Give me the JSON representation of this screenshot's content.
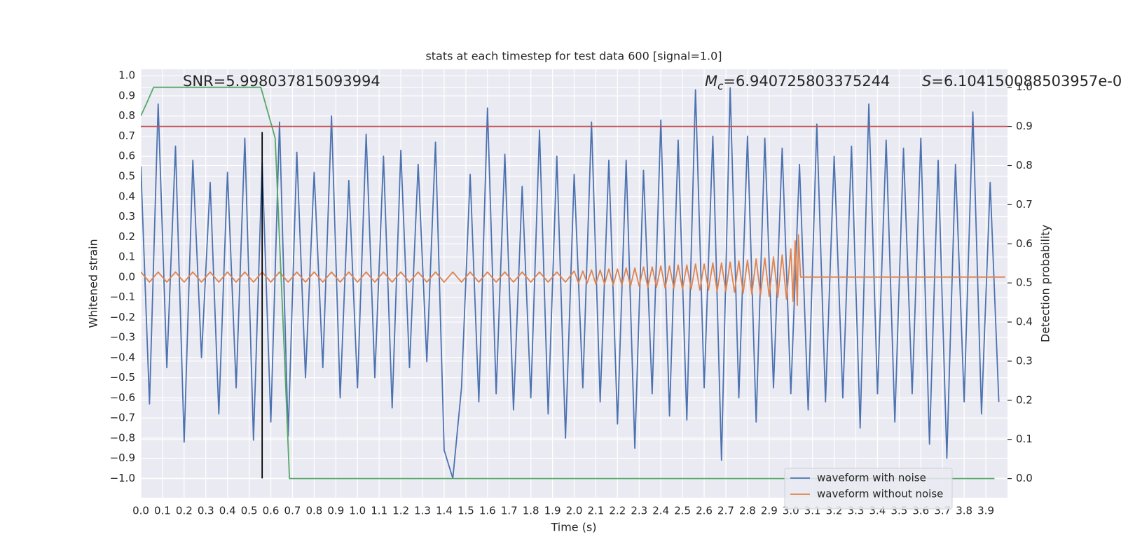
{
  "chart_data": {
    "type": "line",
    "title": "stats at each timestep for test data 600 [signal=1.0]",
    "x_label": "Time (s)",
    "y_label": "Whitened strain",
    "y2_label": "Detection probability",
    "xlim": [
      0,
      4.0
    ],
    "ylim": [
      -1.096,
      1.032
    ],
    "y2lim": [
      -0.049,
      1.046
    ],
    "grid": true,
    "xticks": [
      {
        "value": 0,
        "label": "0.0"
      },
      {
        "value": 0.1,
        "label": "0.1"
      },
      {
        "value": 0.2,
        "label": "0.2"
      },
      {
        "value": 0.3,
        "label": "0.3"
      },
      {
        "value": 0.4,
        "label": "0.4"
      },
      {
        "value": 0.5,
        "label": "0.5"
      },
      {
        "value": 0.6,
        "label": "0.6"
      },
      {
        "value": 0.7,
        "label": "0.7"
      },
      {
        "value": 0.8,
        "label": "0.8"
      },
      {
        "value": 0.9,
        "label": "0.9"
      },
      {
        "value": 1,
        "label": "1.0"
      },
      {
        "value": 1.1,
        "label": "1.1"
      },
      {
        "value": 1.2,
        "label": "1.2"
      },
      {
        "value": 1.3,
        "label": "1.3"
      },
      {
        "value": 1.4,
        "label": "1.4"
      },
      {
        "value": 1.5,
        "label": "1.5"
      },
      {
        "value": 1.6,
        "label": "1.6"
      },
      {
        "value": 1.7,
        "label": "1.7"
      },
      {
        "value": 1.8,
        "label": "1.8"
      },
      {
        "value": 1.9,
        "label": "1.9"
      },
      {
        "value": 2,
        "label": "2.0"
      },
      {
        "value": 2.1,
        "label": "2.1"
      },
      {
        "value": 2.2,
        "label": "2.2"
      },
      {
        "value": 2.3,
        "label": "2.3"
      },
      {
        "value": 2.4,
        "label": "2.4"
      },
      {
        "value": 2.5,
        "label": "2.5"
      },
      {
        "value": 2.6,
        "label": "2.6"
      },
      {
        "value": 2.7,
        "label": "2.7"
      },
      {
        "value": 2.8,
        "label": "2.8"
      },
      {
        "value": 2.9,
        "label": "2.9"
      },
      {
        "value": 3,
        "label": "3.0"
      },
      {
        "value": 3.1,
        "label": "3.1"
      },
      {
        "value": 3.2,
        "label": "3.2"
      },
      {
        "value": 3.3,
        "label": "3.3"
      },
      {
        "value": 3.4,
        "label": "3.4"
      },
      {
        "value": 3.5,
        "label": "3.5"
      },
      {
        "value": 3.6,
        "label": "3.6"
      },
      {
        "value": 3.7,
        "label": "3.7"
      },
      {
        "value": 3.8,
        "label": "3.8"
      },
      {
        "value": 3.9,
        "label": "3.9"
      }
    ],
    "yticks": [
      {
        "value": -1,
        "label": "−1.0"
      },
      {
        "value": -0.9,
        "label": "−0.9"
      },
      {
        "value": -0.8,
        "label": "−0.8"
      },
      {
        "value": -0.7,
        "label": "−0.7"
      },
      {
        "value": -0.6,
        "label": "−0.6"
      },
      {
        "value": -0.5,
        "label": "−0.5"
      },
      {
        "value": -0.4,
        "label": "−0.4"
      },
      {
        "value": -0.3,
        "label": "−0.3"
      },
      {
        "value": -0.2,
        "label": "−0.2"
      },
      {
        "value": -0.1,
        "label": "−0.1"
      },
      {
        "value": 0,
        "label": "0.0"
      },
      {
        "value": 0.1,
        "label": "0.1"
      },
      {
        "value": 0.2,
        "label": "0.2"
      },
      {
        "value": 0.3,
        "label": "0.3"
      },
      {
        "value": 0.4,
        "label": "0.4"
      },
      {
        "value": 0.5,
        "label": "0.5"
      },
      {
        "value": 0.6,
        "label": "0.6"
      },
      {
        "value": 0.7,
        "label": "0.7"
      },
      {
        "value": 0.8,
        "label": "0.8"
      },
      {
        "value": 0.9,
        "label": "0.9"
      },
      {
        "value": 1,
        "label": "1.0"
      }
    ],
    "y2ticks": [
      {
        "value": 0,
        "label": "0.0"
      },
      {
        "value": 0.1,
        "label": "0.1"
      },
      {
        "value": 0.2,
        "label": "0.2"
      },
      {
        "value": 0.3,
        "label": "0.3"
      },
      {
        "value": 0.4,
        "label": "0.4"
      },
      {
        "value": 0.5,
        "label": "0.5"
      },
      {
        "value": 0.6,
        "label": "0.6"
      },
      {
        "value": 0.7,
        "label": "0.7"
      },
      {
        "value": 0.8,
        "label": "0.8"
      },
      {
        "value": 0.9,
        "label": "0.9"
      },
      {
        "value": 1,
        "label": "1.0"
      }
    ],
    "legend": "lower right",
    "series": [
      {
        "name": "waveform with noise",
        "color": "#4c72b0",
        "x": [
          0,
          0.04,
          0.08,
          0.12,
          0.16,
          0.2,
          0.24,
          0.28,
          0.32,
          0.36,
          0.4,
          0.44,
          0.48,
          0.52,
          0.56,
          0.6,
          0.64,
          0.68,
          0.72,
          0.76,
          0.8,
          0.84,
          0.88,
          0.92,
          0.96,
          1,
          1.04,
          1.08,
          1.12,
          1.16,
          1.2,
          1.24,
          1.28,
          1.32,
          1.36,
          1.4,
          1.44,
          1.48,
          1.52,
          1.56,
          1.6,
          1.64,
          1.68,
          1.72,
          1.76,
          1.8,
          1.84,
          1.88,
          1.92,
          1.96,
          2,
          2.04,
          2.08,
          2.12,
          2.16,
          2.2,
          2.24,
          2.28,
          2.32,
          2.36,
          2.4,
          2.44,
          2.48,
          2.52,
          2.56,
          2.6,
          2.64,
          2.68,
          2.72,
          2.76,
          2.8,
          2.84,
          2.88,
          2.92,
          2.96,
          3,
          3.04,
          3.08,
          3.12,
          3.16,
          3.2,
          3.24,
          3.28,
          3.32,
          3.36,
          3.4,
          3.44,
          3.48,
          3.52,
          3.56,
          3.6,
          3.64,
          3.68,
          3.72,
          3.76,
          3.8,
          3.84,
          3.88,
          3.92,
          3.96
        ],
        "values": [
          0.55,
          -0.63,
          0.86,
          -0.45,
          0.65,
          -0.82,
          0.58,
          -0.4,
          0.47,
          -0.68,
          0.52,
          -0.55,
          0.69,
          -0.81,
          0.57,
          -0.72,
          0.77,
          -0.79,
          0.62,
          -0.5,
          0.52,
          -0.45,
          0.8,
          -0.6,
          0.48,
          -0.55,
          0.71,
          -0.5,
          0.6,
          -0.65,
          0.63,
          -0.45,
          0.56,
          -0.42,
          0.67,
          -0.86,
          -1.0,
          -0.55,
          0.51,
          -0.62,
          0.84,
          -0.58,
          0.61,
          -0.66,
          0.45,
          -0.6,
          0.73,
          -0.68,
          0.6,
          -0.8,
          0.51,
          -0.55,
          0.77,
          -0.62,
          0.58,
          -0.73,
          0.58,
          -0.85,
          0.53,
          -0.58,
          0.78,
          -0.69,
          0.68,
          -0.71,
          0.93,
          -0.55,
          0.7,
          -0.91,
          0.94,
          -0.6,
          0.7,
          -0.72,
          0.69,
          -0.55,
          0.64,
          -0.58,
          0.56,
          -0.66,
          0.76,
          -0.62,
          0.6,
          -0.6,
          0.65,
          -0.75,
          0.86,
          -0.58,
          0.68,
          -0.72,
          0.64,
          -0.58,
          0.69,
          -0.83,
          0.58,
          -0.9,
          0.56,
          -0.62,
          0.82,
          -0.68,
          0.47,
          -0.62
        ]
      },
      {
        "name": "waveform without noise",
        "color": "#dd8452",
        "x": [
          0,
          0.04,
          0.08,
          0.12,
          0.16,
          0.2,
          0.24,
          0.28,
          0.32,
          0.36,
          0.4,
          0.44,
          0.48,
          0.52,
          0.56,
          0.6,
          0.64,
          0.68,
          0.72,
          0.76,
          0.8,
          0.84,
          0.88,
          0.92,
          0.96,
          1,
          1.04,
          1.08,
          1.12,
          1.16,
          1.2,
          1.24,
          1.28,
          1.32,
          1.36,
          1.4,
          1.44,
          1.48,
          1.52,
          1.56,
          1.6,
          1.64,
          1.68,
          1.72,
          1.76,
          1.8,
          1.84,
          1.88,
          1.92,
          1.96,
          2,
          2.02,
          2.04,
          2.06,
          2.08,
          2.1,
          2.12,
          2.14,
          2.16,
          2.18,
          2.2,
          2.22,
          2.24,
          2.26,
          2.28,
          2.3,
          2.32,
          2.34,
          2.36,
          2.38,
          2.4,
          2.42,
          2.44,
          2.46,
          2.48,
          2.5,
          2.52,
          2.54,
          2.56,
          2.58,
          2.6,
          2.62,
          2.64,
          2.66,
          2.68,
          2.7,
          2.72,
          2.74,
          2.76,
          2.78,
          2.8,
          2.82,
          2.84,
          2.86,
          2.88,
          2.9,
          2.92,
          2.94,
          2.96,
          2.98,
          3,
          3.01,
          3.02,
          3.03,
          3.035,
          3.045,
          3.99
        ],
        "values": [
          0.025,
          -0.025,
          0.025,
          -0.025,
          0.025,
          -0.025,
          0.025,
          -0.025,
          0.025,
          -0.025,
          0.025,
          -0.025,
          0.025,
          -0.025,
          0.025,
          -0.025,
          0.025,
          -0.025,
          0.025,
          -0.025,
          0.025,
          -0.025,
          0.025,
          -0.025,
          0.025,
          -0.025,
          0.025,
          -0.025,
          0.025,
          -0.025,
          0.025,
          -0.025,
          0.025,
          -0.025,
          0.025,
          -0.025,
          0.025,
          -0.025,
          0.025,
          -0.025,
          0.025,
          -0.025,
          0.025,
          -0.025,
          0.025,
          -0.025,
          0.025,
          -0.025,
          0.025,
          -0.025,
          0.03,
          -0.03,
          0.03,
          -0.03,
          0.035,
          -0.035,
          0.035,
          -0.035,
          0.04,
          -0.04,
          0.04,
          -0.04,
          0.045,
          -0.045,
          0.045,
          -0.045,
          0.05,
          -0.05,
          0.05,
          -0.05,
          0.055,
          -0.055,
          0.055,
          -0.055,
          0.06,
          -0.06,
          0.06,
          -0.06,
          0.065,
          -0.065,
          0.065,
          -0.065,
          0.07,
          -0.07,
          0.07,
          -0.07,
          0.075,
          -0.075,
          0.08,
          -0.08,
          0.085,
          -0.085,
          0.09,
          -0.09,
          0.095,
          -0.095,
          0.1,
          -0.1,
          0.11,
          -0.11,
          0.14,
          -0.12,
          0.18,
          -0.14,
          0.21,
          0.0,
          0.0
        ]
      },
      {
        "color": "#55a868",
        "axis": "y2",
        "x": [
          0,
          0.026,
          0.059,
          0.115,
          0.554,
          0.62,
          0.663,
          0.686,
          3.94
        ],
        "values": [
          0.927,
          0.958,
          1.0,
          1.0,
          1.0,
          0.87,
          0.314,
          0,
          0
        ]
      }
    ],
    "hlines": [
      {
        "y": 0.9,
        "axis": "y2",
        "color": "#c44e52"
      }
    ],
    "vlines": [
      {
        "x": 0.56,
        "ymin": -1.0,
        "ymax": 0.72,
        "color": "#000000"
      }
    ],
    "annotations": [
      {
        "text": "SNR=5.998037815093994"
      },
      {
        "symbol": "M",
        "subscript": "c",
        "text": "=6.940725803375244"
      },
      {
        "symbol": "S",
        "text": "=6.104150088503957e-0"
      }
    ]
  }
}
